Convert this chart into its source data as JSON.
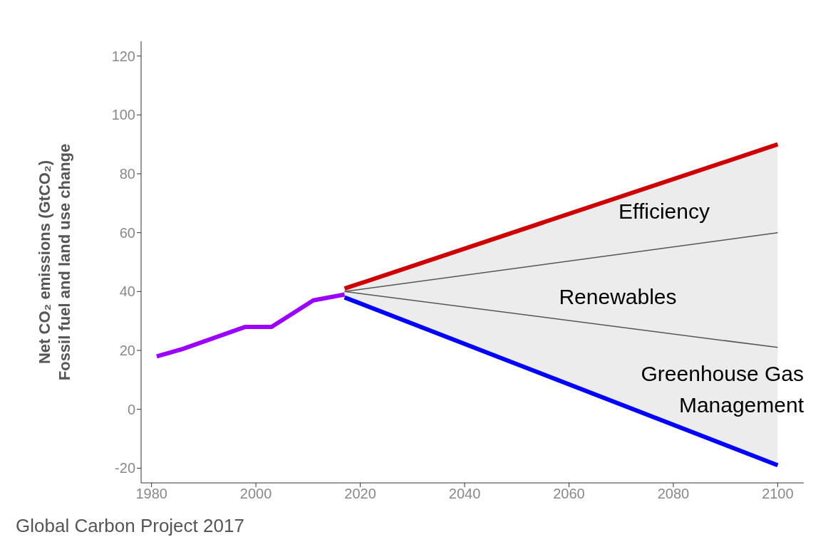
{
  "chart_data": {
    "type": "line",
    "ylabel": "Net CO₂ emissions (GtCO₂)\nFossil fuel and land use change",
    "xlim": [
      1978,
      2105
    ],
    "ylim": [
      -25,
      125
    ],
    "xticks": [
      1980,
      2000,
      2020,
      2040,
      2060,
      2080,
      2100
    ],
    "yticks": [
      -20,
      0,
      20,
      40,
      60,
      80,
      100,
      120
    ],
    "grid": false,
    "legend": false,
    "marker": "none",
    "line_style": "solid",
    "series": [
      {
        "color": "#9b00ff",
        "x": [
          1981,
          1986,
          1998,
          2003,
          2011,
          2017
        ],
        "values": [
          18,
          20.5,
          28,
          28,
          37,
          39
        ]
      },
      {
        "color": "#cc0000",
        "x": [
          2017,
          2100
        ],
        "values": [
          41,
          90
        ]
      },
      {
        "color": "#555555",
        "x": [
          2017,
          2100
        ],
        "values": [
          40,
          60
        ],
        "lower": [
          38,
          -19
        ],
        "upper": [
          41,
          90
        ]
      },
      {
        "color": "#555555",
        "x": [
          2017,
          2100
        ],
        "values": [
          40,
          21
        ]
      },
      {
        "color": "#0000ff",
        "x": [
          2017,
          2100
        ],
        "values": [
          38,
          -19
        ]
      }
    ],
    "annotations": [
      "Efficiency",
      "Renewables",
      "Greenhouse Gas\nManagement",
      "Global Carbon Project 2017"
    ]
  }
}
